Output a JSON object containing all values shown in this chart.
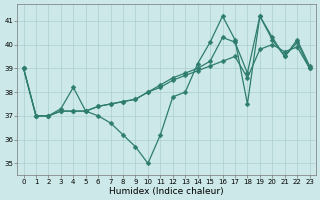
{
  "xlabel": "Humidex (Indice chaleur)",
  "line_color": "#2e7d6e",
  "bg_color": "#cce8e8",
  "grid_color": "#aacfcf",
  "x_values": [
    0,
    1,
    2,
    3,
    4,
    5,
    6,
    7,
    8,
    9,
    10,
    11,
    12,
    13,
    14,
    15,
    16,
    17,
    18,
    19,
    20,
    21,
    22,
    23
  ],
  "series": [
    [
      39,
      37,
      37,
      37.3,
      38.2,
      37.2,
      37,
      36.7,
      36.2,
      35.7,
      35,
      36.2,
      37.8,
      38,
      39.2,
      40.1,
      41.2,
      40.2,
      37.5,
      41.2,
      40.2,
      39.5,
      40.1,
      39
    ],
    [
      39,
      37,
      37,
      37.2,
      37.2,
      37.2,
      37.4,
      37.5,
      37.6,
      37.7,
      38.0,
      38.2,
      38.5,
      38.7,
      38.9,
      39.1,
      39.3,
      39.5,
      38.6,
      39.8,
      40.0,
      39.7,
      39.9,
      39.0
    ],
    [
      39,
      37,
      37,
      37.2,
      37.2,
      37.2,
      37.4,
      37.5,
      37.6,
      37.7,
      38.0,
      38.3,
      38.6,
      38.8,
      39.0,
      39.3,
      40.3,
      40.1,
      38.8,
      41.2,
      40.3,
      39.5,
      40.2,
      39.1
    ]
  ],
  "ylim": [
    34.5,
    41.7
  ],
  "yticks": [
    35,
    36,
    37,
    38,
    39,
    40,
    41
  ],
  "xlim": [
    -0.5,
    23.5
  ],
  "markersize": 2.5,
  "linewidth": 0.9,
  "tick_fontsize": 5,
  "xlabel_fontsize": 6.5
}
